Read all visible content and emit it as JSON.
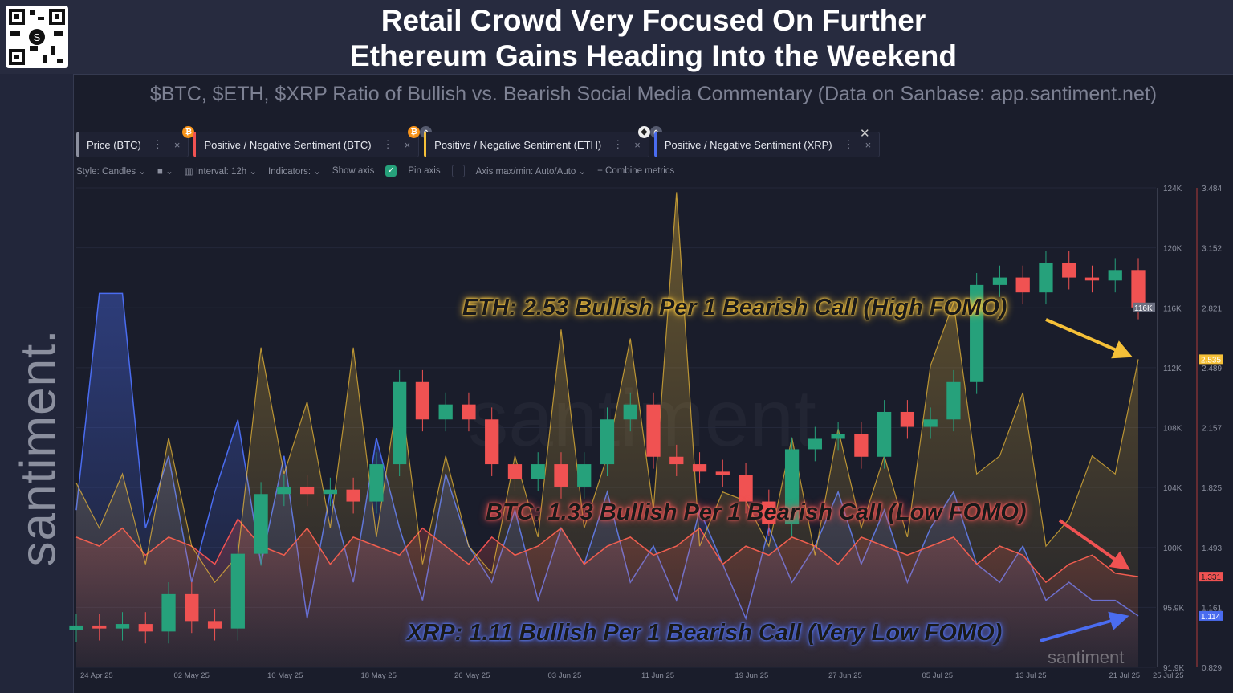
{
  "header": {
    "title_line1": "Retail Crowd Very Focused On Further",
    "title_line2": "Ethereum Gains Heading Into the Weekend",
    "subtitle": "$BTC, $ETH, $XRP Ratio of Bullish vs. Bearish Social Media Commentary (Data on Sanbase: app.santiment.net)",
    "watermark": "santiment."
  },
  "tabs": [
    {
      "label": "Price (BTC)",
      "color": "#8b8f9e"
    },
    {
      "label": "Positive / Negative Sentiment (BTC)",
      "color": "#f05252",
      "badge": "B"
    },
    {
      "label": "Positive / Negative Sentiment (ETH)",
      "color": "#f5c038",
      "badge": "B"
    },
    {
      "label": "Positive / Negative Sentiment (XRP)",
      "color": "#4a6cf0",
      "badge": "E"
    }
  ],
  "toolbar": {
    "style": "Style: Candles",
    "interval": "Interval: 12h",
    "indicators": "Indicators:",
    "show_axis": "Show axis",
    "pin_axis": "Pin axis",
    "axis_maxmin": "Axis max/min: Auto/Auto",
    "combine": "Combine metrics"
  },
  "annotations": {
    "eth": "ETH: 2.53 Bullish Per 1 Bearish Call (High FOMO)",
    "btc": "BTC: 1.33 Bullish Per 1 Bearish Call (Low FOMO)",
    "xrp": "XRP: 1.11 Bullish Per 1 Bearish Call (Very Low FOMO)"
  },
  "chart_data": {
    "type": "line",
    "interval": "12h",
    "x_ticks": [
      "24 Apr 25",
      "02 May 25",
      "10 May 25",
      "18 May 25",
      "26 May 25",
      "03 Jun 25",
      "11 Jun 25",
      "19 Jun 25",
      "27 Jun 25",
      "05 Jul 25",
      "13 Jul 25",
      "21 Jul 25",
      "25 Jul 25"
    ],
    "price_axis": {
      "ticks": [
        "124K",
        "120K",
        "116K",
        "112K",
        "108K",
        "104K",
        "100K",
        "95.9K",
        "91.9K"
      ],
      "range": [
        91.9,
        124
      ],
      "current": "116K"
    },
    "ratio_axis": {
      "ticks": [
        "3.484",
        "3.152",
        "2.821",
        "2.489",
        "2.157",
        "1.825",
        "1.493",
        "1.161",
        "0.829"
      ],
      "range": [
        0.829,
        3.484
      ]
    },
    "dates": [
      "Apr24",
      "Apr26",
      "Apr28",
      "Apr30",
      "May02",
      "May04",
      "May06",
      "May08",
      "May10",
      "May12",
      "May14",
      "May16",
      "May18",
      "May20",
      "May22",
      "May24",
      "May26",
      "May28",
      "May30",
      "Jun01",
      "Jun03",
      "Jun05",
      "Jun07",
      "Jun09",
      "Jun11",
      "Jun13",
      "Jun15",
      "Jun17",
      "Jun19",
      "Jun21",
      "Jun23",
      "Jun25",
      "Jun27",
      "Jun29",
      "Jul01",
      "Jul03",
      "Jul05",
      "Jul07",
      "Jul09",
      "Jul11",
      "Jul13",
      "Jul15",
      "Jul17",
      "Jul19",
      "Jul21",
      "Jul23",
      "Jul25"
    ],
    "series": [
      {
        "name": "Price (BTC)",
        "kind": "candles",
        "unit": "K USD",
        "color_up": "#26a17b",
        "color_down": "#f05252",
        "values": [
          94.7,
          94.5,
          94.8,
          94.3,
          96.8,
          95.0,
          94.5,
          99.5,
          103.5,
          104.0,
          103.5,
          103.8,
          103.0,
          105.5,
          111.0,
          108.5,
          109.5,
          108.5,
          105.5,
          104.5,
          105.5,
          104.0,
          105.5,
          108.5,
          109.5,
          106.0,
          105.5,
          105.0,
          104.8,
          103.0,
          101.5,
          106.5,
          107.2,
          107.5,
          106.0,
          109.0,
          108.0,
          108.5,
          111.0,
          117.5,
          118.0,
          117.0,
          119.0,
          118.0,
          117.8,
          118.5,
          116.0
        ]
      },
      {
        "name": "Positive / Negative Sentiment (ETH)",
        "color": "#f5c038",
        "last": "2.535",
        "values": [
          1.85,
          1.6,
          1.9,
          1.4,
          2.1,
          1.5,
          1.3,
          1.45,
          2.6,
          1.9,
          2.3,
          1.6,
          2.6,
          1.55,
          2.4,
          1.4,
          2.0,
          1.5,
          1.35,
          2.0,
          1.55,
          2.7,
          1.6,
          2.0,
          2.65,
          1.7,
          3.46,
          1.5,
          1.8,
          1.75,
          1.5,
          2.1,
          1.45,
          2.15,
          1.6,
          2.0,
          1.55,
          2.5,
          2.85,
          1.9,
          2.0,
          2.35,
          1.5,
          1.65,
          2.0,
          1.9,
          2.535
        ]
      },
      {
        "name": "Positive / Negative Sentiment (BTC)",
        "color": "#f05252",
        "last": "1.331",
        "values": [
          1.55,
          1.5,
          1.6,
          1.45,
          1.55,
          1.5,
          1.4,
          1.65,
          1.5,
          1.45,
          1.6,
          1.4,
          1.55,
          1.5,
          1.45,
          1.6,
          1.5,
          1.4,
          1.55,
          1.45,
          1.5,
          1.6,
          1.4,
          1.5,
          1.55,
          1.45,
          1.5,
          1.6,
          1.4,
          1.5,
          1.45,
          1.55,
          1.5,
          1.4,
          1.55,
          1.5,
          1.45,
          1.5,
          1.55,
          1.4,
          1.5,
          1.45,
          1.3,
          1.4,
          1.45,
          1.35,
          1.331
        ]
      },
      {
        "name": "Positive / Negative Sentiment (XRP)",
        "color": "#4a6cf0",
        "last": "1.114",
        "values": [
          1.7,
          2.9,
          2.9,
          1.6,
          2.0,
          1.3,
          1.8,
          2.2,
          1.4,
          2.0,
          1.1,
          1.8,
          1.3,
          2.1,
          1.6,
          1.2,
          1.9,
          1.5,
          1.3,
          1.7,
          1.2,
          1.6,
          1.4,
          1.8,
          1.3,
          1.5,
          1.2,
          1.7,
          1.4,
          1.1,
          1.6,
          1.3,
          1.5,
          1.8,
          1.4,
          1.7,
          1.3,
          1.6,
          1.8,
          1.4,
          1.3,
          1.5,
          1.2,
          1.3,
          1.2,
          1.2,
          1.114
        ]
      }
    ]
  }
}
